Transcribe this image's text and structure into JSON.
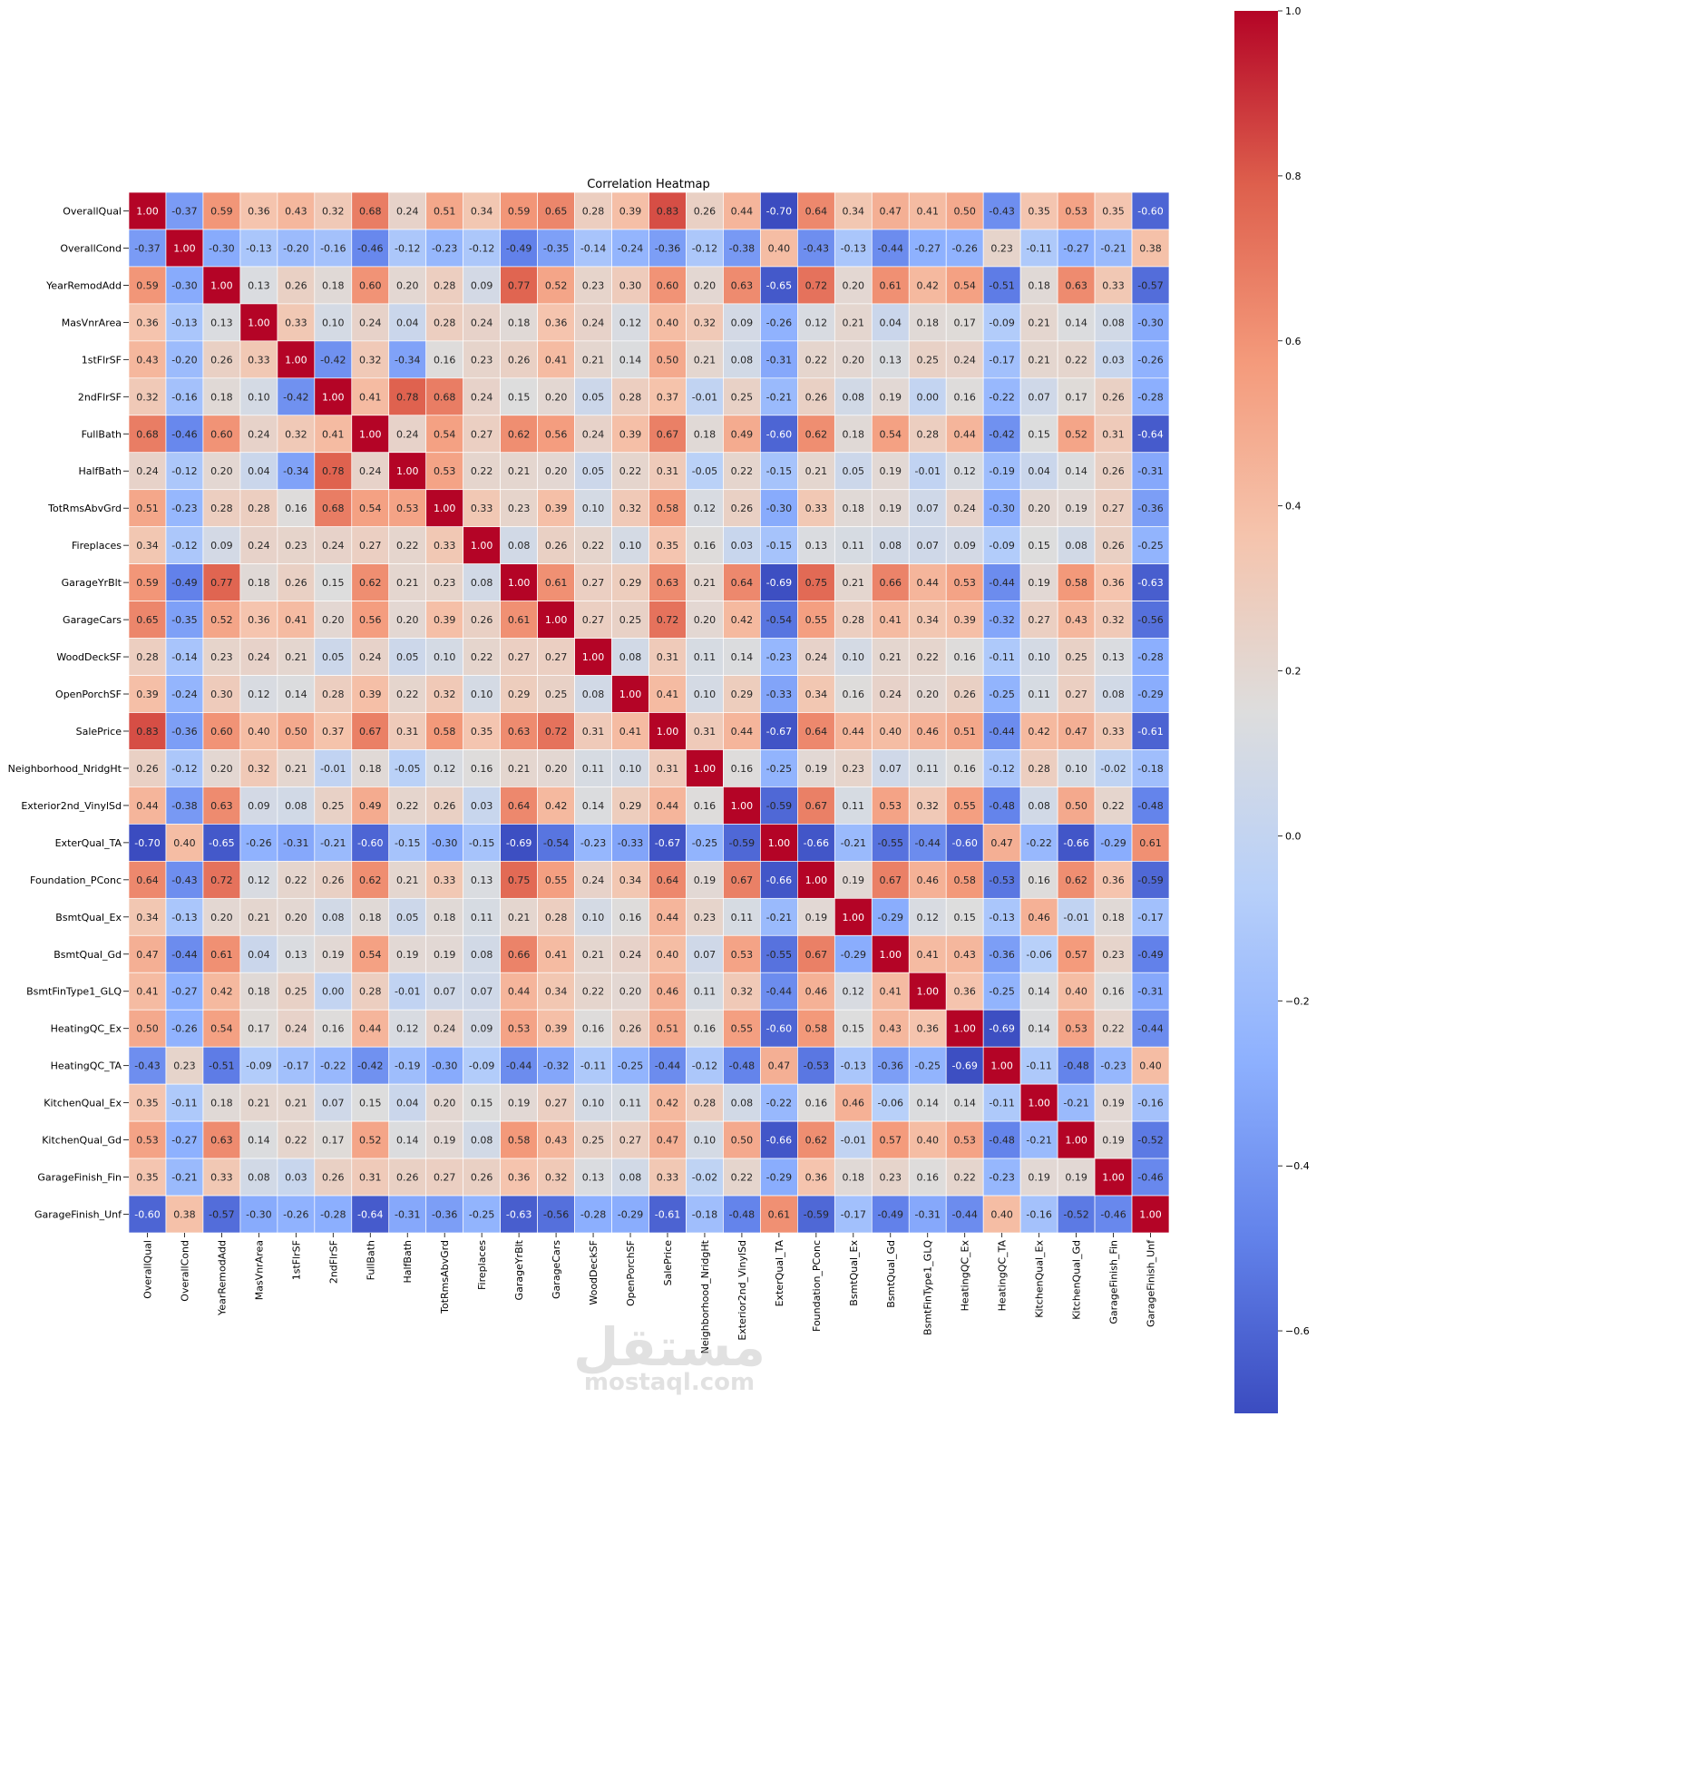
{
  "chart_data": {
    "type": "heatmap",
    "title": "Correlation Heatmap",
    "colormap": "coolwarm",
    "vmin": -0.7,
    "vmax": 1.0,
    "colorbar_ticks": [
      1.0,
      0.8,
      0.6,
      0.4,
      0.2,
      0.0,
      -0.2,
      -0.4,
      -0.6
    ],
    "colorbar_tick_labels": [
      "1.0",
      "0.8",
      "0.6",
      "0.4",
      "0.2",
      "0.0",
      "−0.2",
      "−0.4",
      "−0.6"
    ],
    "labels": [
      "OverallQual",
      "OverallCond",
      "YearRemodAdd",
      "MasVnrArea",
      "1stFlrSF",
      "2ndFlrSF",
      "FullBath",
      "HalfBath",
      "TotRmsAbvGrd",
      "Fireplaces",
      "GarageYrBlt",
      "GarageCars",
      "WoodDeckSF",
      "OpenPorchSF",
      "SalePrice",
      "Neighborhood_NridgHt",
      "Exterior2nd_VinylSd",
      "ExterQual_TA",
      "Foundation_PConc",
      "BsmtQual_Ex",
      "BsmtQual_Gd",
      "BsmtFinType1_GLQ",
      "HeatingQC_Ex",
      "HeatingQC_TA",
      "KitchenQual_Ex",
      "KitchenQual_Gd",
      "GarageFinish_Fin",
      "GarageFinish_Unf"
    ],
    "values": [
      [
        1.0,
        -0.37,
        0.59,
        0.36,
        0.43,
        0.32,
        0.68,
        0.24,
        0.51,
        0.34,
        0.59,
        0.65,
        0.28,
        0.39,
        0.83,
        0.26,
        0.44,
        -0.7,
        0.64,
        0.34,
        0.47,
        0.41,
        0.5,
        -0.43,
        0.35,
        0.53,
        0.35,
        -0.6
      ],
      [
        -0.37,
        1.0,
        -0.3,
        -0.13,
        -0.2,
        -0.16,
        -0.46,
        -0.12,
        -0.23,
        -0.12,
        -0.49,
        -0.35,
        -0.14,
        -0.24,
        -0.36,
        -0.12,
        -0.38,
        0.4,
        -0.43,
        -0.13,
        -0.44,
        -0.27,
        -0.26,
        0.23,
        -0.11,
        -0.27,
        -0.21,
        0.38
      ],
      [
        0.59,
        -0.3,
        1.0,
        0.13,
        0.26,
        0.18,
        0.6,
        0.2,
        0.28,
        0.09,
        0.77,
        0.52,
        0.23,
        0.3,
        0.6,
        0.2,
        0.63,
        -0.65,
        0.72,
        0.2,
        0.61,
        0.42,
        0.54,
        -0.51,
        0.18,
        0.63,
        0.33,
        -0.57
      ],
      [
        0.36,
        -0.13,
        0.13,
        1.0,
        0.33,
        0.1,
        0.24,
        0.04,
        0.28,
        0.24,
        0.18,
        0.36,
        0.24,
        0.12,
        0.4,
        0.32,
        0.09,
        -0.26,
        0.12,
        0.21,
        0.04,
        0.18,
        0.17,
        -0.09,
        0.21,
        0.14,
        0.08,
        -0.3
      ],
      [
        0.43,
        -0.2,
        0.26,
        0.33,
        1.0,
        -0.42,
        0.32,
        -0.34,
        0.16,
        0.23,
        0.26,
        0.41,
        0.21,
        0.14,
        0.5,
        0.21,
        0.08,
        -0.31,
        0.22,
        0.2,
        0.13,
        0.25,
        0.24,
        -0.17,
        0.21,
        0.22,
        0.03,
        -0.26
      ],
      [
        0.32,
        -0.16,
        0.18,
        0.1,
        -0.42,
        1.0,
        0.41,
        0.78,
        0.68,
        0.24,
        0.15,
        0.2,
        0.05,
        0.28,
        0.37,
        -0.01,
        0.25,
        -0.21,
        0.26,
        0.08,
        0.19,
        0.0,
        0.16,
        -0.22,
        0.07,
        0.17,
        0.26,
        -0.28
      ],
      [
        0.68,
        -0.46,
        0.6,
        0.24,
        0.32,
        0.41,
        1.0,
        0.24,
        0.54,
        0.27,
        0.62,
        0.56,
        0.24,
        0.39,
        0.67,
        0.18,
        0.49,
        -0.6,
        0.62,
        0.18,
        0.54,
        0.28,
        0.44,
        -0.42,
        0.15,
        0.52,
        0.31,
        -0.64
      ],
      [
        0.24,
        -0.12,
        0.2,
        0.04,
        -0.34,
        0.78,
        0.24,
        1.0,
        0.53,
        0.22,
        0.21,
        0.2,
        0.05,
        0.22,
        0.31,
        -0.05,
        0.22,
        -0.15,
        0.21,
        0.05,
        0.19,
        -0.01,
        0.12,
        -0.19,
        0.04,
        0.14,
        0.26,
        -0.31
      ],
      [
        0.51,
        -0.23,
        0.28,
        0.28,
        0.16,
        0.68,
        0.54,
        0.53,
        1.0,
        0.33,
        0.23,
        0.39,
        0.1,
        0.32,
        0.58,
        0.12,
        0.26,
        -0.3,
        0.33,
        0.18,
        0.19,
        0.07,
        0.24,
        -0.3,
        0.2,
        0.19,
        0.27,
        -0.36
      ],
      [
        0.34,
        -0.12,
        0.09,
        0.24,
        0.23,
        0.24,
        0.27,
        0.22,
        0.33,
        1.0,
        0.08,
        0.26,
        0.22,
        0.1,
        0.35,
        0.16,
        0.03,
        -0.15,
        0.13,
        0.11,
        0.08,
        0.07,
        0.09,
        -0.09,
        0.15,
        0.08,
        0.26,
        -0.25
      ],
      [
        0.59,
        -0.49,
        0.77,
        0.18,
        0.26,
        0.15,
        0.62,
        0.21,
        0.23,
        0.08,
        1.0,
        0.61,
        0.27,
        0.29,
        0.63,
        0.21,
        0.64,
        -0.69,
        0.75,
        0.21,
        0.66,
        0.44,
        0.53,
        -0.44,
        0.19,
        0.58,
        0.36,
        -0.63
      ],
      [
        0.65,
        -0.35,
        0.52,
        0.36,
        0.41,
        0.2,
        0.56,
        0.2,
        0.39,
        0.26,
        0.61,
        1.0,
        0.27,
        0.25,
        0.72,
        0.2,
        0.42,
        -0.54,
        0.55,
        0.28,
        0.41,
        0.34,
        0.39,
        -0.32,
        0.27,
        0.43,
        0.32,
        -0.56
      ],
      [
        0.28,
        -0.14,
        0.23,
        0.24,
        0.21,
        0.05,
        0.24,
        0.05,
        0.1,
        0.22,
        0.27,
        0.27,
        1.0,
        0.08,
        0.31,
        0.11,
        0.14,
        -0.23,
        0.24,
        0.1,
        0.21,
        0.22,
        0.16,
        -0.11,
        0.1,
        0.25,
        0.13,
        -0.28
      ],
      [
        0.39,
        -0.24,
        0.3,
        0.12,
        0.14,
        0.28,
        0.39,
        0.22,
        0.32,
        0.1,
        0.29,
        0.25,
        0.08,
        1.0,
        0.41,
        0.1,
        0.29,
        -0.33,
        0.34,
        0.16,
        0.24,
        0.2,
        0.26,
        -0.25,
        0.11,
        0.27,
        0.08,
        -0.29
      ],
      [
        0.83,
        -0.36,
        0.6,
        0.4,
        0.5,
        0.37,
        0.67,
        0.31,
        0.58,
        0.35,
        0.63,
        0.72,
        0.31,
        0.41,
        1.0,
        0.31,
        0.44,
        -0.67,
        0.64,
        0.44,
        0.4,
        0.46,
        0.51,
        -0.44,
        0.42,
        0.47,
        0.33,
        -0.61
      ],
      [
        0.26,
        -0.12,
        0.2,
        0.32,
        0.21,
        -0.01,
        0.18,
        -0.05,
        0.12,
        0.16,
        0.21,
        0.2,
        0.11,
        0.1,
        0.31,
        1.0,
        0.16,
        -0.25,
        0.19,
        0.23,
        0.07,
        0.11,
        0.16,
        -0.12,
        0.28,
        0.1,
        -0.02,
        -0.18
      ],
      [
        0.44,
        -0.38,
        0.63,
        0.09,
        0.08,
        0.25,
        0.49,
        0.22,
        0.26,
        0.03,
        0.64,
        0.42,
        0.14,
        0.29,
        0.44,
        0.16,
        1.0,
        -0.59,
        0.67,
        0.11,
        0.53,
        0.32,
        0.55,
        -0.48,
        0.08,
        0.5,
        0.22,
        -0.48
      ],
      [
        -0.7,
        0.4,
        -0.65,
        -0.26,
        -0.31,
        -0.21,
        -0.6,
        -0.15,
        -0.3,
        -0.15,
        -0.69,
        -0.54,
        -0.23,
        -0.33,
        -0.67,
        -0.25,
        -0.59,
        1.0,
        -0.66,
        -0.21,
        -0.55,
        -0.44,
        -0.6,
        0.47,
        -0.22,
        -0.66,
        -0.29,
        0.61
      ],
      [
        0.64,
        -0.43,
        0.72,
        0.12,
        0.22,
        0.26,
        0.62,
        0.21,
        0.33,
        0.13,
        0.75,
        0.55,
        0.24,
        0.34,
        0.64,
        0.19,
        0.67,
        -0.66,
        1.0,
        0.19,
        0.67,
        0.46,
        0.58,
        -0.53,
        0.16,
        0.62,
        0.36,
        -0.59
      ],
      [
        0.34,
        -0.13,
        0.2,
        0.21,
        0.2,
        0.08,
        0.18,
        0.05,
        0.18,
        0.11,
        0.21,
        0.28,
        0.1,
        0.16,
        0.44,
        0.23,
        0.11,
        -0.21,
        0.19,
        1.0,
        -0.29,
        0.12,
        0.15,
        -0.13,
        0.46,
        -0.01,
        0.18,
        -0.17
      ],
      [
        0.47,
        -0.44,
        0.61,
        0.04,
        0.13,
        0.19,
        0.54,
        0.19,
        0.19,
        0.08,
        0.66,
        0.41,
        0.21,
        0.24,
        0.4,
        0.07,
        0.53,
        -0.55,
        0.67,
        -0.29,
        1.0,
        0.41,
        0.43,
        -0.36,
        -0.06,
        0.57,
        0.23,
        -0.49
      ],
      [
        0.41,
        -0.27,
        0.42,
        0.18,
        0.25,
        0.0,
        0.28,
        -0.01,
        0.07,
        0.07,
        0.44,
        0.34,
        0.22,
        0.2,
        0.46,
        0.11,
        0.32,
        -0.44,
        0.46,
        0.12,
        0.41,
        1.0,
        0.36,
        -0.25,
        0.14,
        0.4,
        0.16,
        -0.31
      ],
      [
        0.5,
        -0.26,
        0.54,
        0.17,
        0.24,
        0.16,
        0.44,
        0.12,
        0.24,
        0.09,
        0.53,
        0.39,
        0.16,
        0.26,
        0.51,
        0.16,
        0.55,
        -0.6,
        0.58,
        0.15,
        0.43,
        0.36,
        1.0,
        -0.69,
        0.14,
        0.53,
        0.22,
        -0.44
      ],
      [
        -0.43,
        0.23,
        -0.51,
        -0.09,
        -0.17,
        -0.22,
        -0.42,
        -0.19,
        -0.3,
        -0.09,
        -0.44,
        -0.32,
        -0.11,
        -0.25,
        -0.44,
        -0.12,
        -0.48,
        0.47,
        -0.53,
        -0.13,
        -0.36,
        -0.25,
        -0.69,
        1.0,
        -0.11,
        -0.48,
        -0.23,
        0.4
      ],
      [
        0.35,
        -0.11,
        0.18,
        0.21,
        0.21,
        0.07,
        0.15,
        0.04,
        0.2,
        0.15,
        0.19,
        0.27,
        0.1,
        0.11,
        0.42,
        0.28,
        0.08,
        -0.22,
        0.16,
        0.46,
        -0.06,
        0.14,
        0.14,
        -0.11,
        1.0,
        -0.21,
        0.19,
        -0.16
      ],
      [
        0.53,
        -0.27,
        0.63,
        0.14,
        0.22,
        0.17,
        0.52,
        0.14,
        0.19,
        0.08,
        0.58,
        0.43,
        0.25,
        0.27,
        0.47,
        0.1,
        0.5,
        -0.66,
        0.62,
        -0.01,
        0.57,
        0.4,
        0.53,
        -0.48,
        -0.21,
        1.0,
        0.19,
        -0.52
      ],
      [
        0.35,
        -0.21,
        0.33,
        0.08,
        0.03,
        0.26,
        0.31,
        0.26,
        0.27,
        0.26,
        0.36,
        0.32,
        0.13,
        0.08,
        0.33,
        -0.02,
        0.22,
        -0.29,
        0.36,
        0.18,
        0.23,
        0.16,
        0.22,
        -0.23,
        0.19,
        0.19,
        1.0,
        -0.46
      ],
      [
        -0.6,
        0.38,
        -0.57,
        -0.3,
        -0.26,
        -0.28,
        -0.64,
        -0.31,
        -0.36,
        -0.25,
        -0.63,
        -0.56,
        -0.28,
        -0.29,
        -0.61,
        -0.18,
        -0.48,
        0.61,
        -0.59,
        -0.17,
        -0.49,
        -0.31,
        -0.44,
        0.4,
        -0.16,
        -0.52,
        -0.46,
        1.0
      ]
    ]
  },
  "watermark": {
    "arabic": "مستقل",
    "latin": "mostaql.com"
  }
}
